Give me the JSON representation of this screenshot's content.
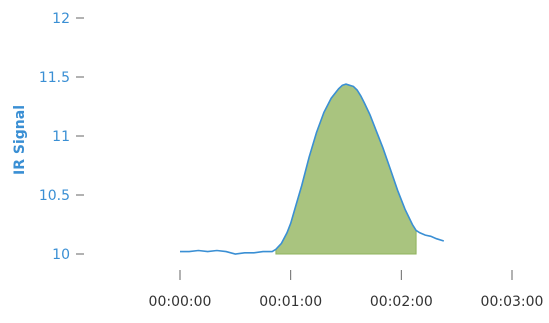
{
  "colors": {
    "line": "#3a8fd4",
    "fill": "#a9c47f",
    "fill_edge": "#8fb35c",
    "y_tick": "#3a8fd4",
    "x_tick": "#555555"
  },
  "chart_data": {
    "type": "area",
    "title": "",
    "xlabel": "",
    "ylabel": "IR Signal",
    "ylim": [
      10,
      12
    ],
    "xlim_seconds": [
      -10,
      180
    ],
    "y_ticks": [
      {
        "value": 10,
        "label": "10"
      },
      {
        "value": 10.5,
        "label": "10.5"
      },
      {
        "value": 11,
        "label": "11"
      },
      {
        "value": 11.5,
        "label": "11.5"
      },
      {
        "value": 12,
        "label": "12"
      }
    ],
    "x_ticks": [
      {
        "value": 0,
        "label": "00:00:00"
      },
      {
        "value": 60,
        "label": "00:01:00"
      },
      {
        "value": 120,
        "label": "00:02:00"
      },
      {
        "value": 180,
        "label": "00:03:00"
      }
    ],
    "grid": false,
    "shaded_region_seconds": [
      52,
      128
    ],
    "series": [
      {
        "x": [
          0,
          5,
          10,
          15,
          20,
          25,
          30,
          35,
          40,
          45,
          50,
          52,
          55,
          58,
          60,
          63,
          66,
          70,
          74,
          78,
          82,
          86,
          88,
          90,
          92,
          94,
          96,
          98,
          100,
          103,
          106,
          110,
          114,
          118,
          122,
          126,
          128,
          130,
          133,
          136,
          139,
          143
        ],
        "y": [
          10.02,
          10.02,
          10.03,
          10.02,
          10.03,
          10.02,
          10.0,
          10.01,
          10.01,
          10.02,
          10.02,
          10.04,
          10.09,
          10.18,
          10.26,
          10.42,
          10.58,
          10.82,
          11.03,
          11.2,
          11.32,
          11.4,
          11.43,
          11.44,
          11.43,
          11.42,
          11.39,
          11.34,
          11.28,
          11.18,
          11.06,
          10.9,
          10.72,
          10.54,
          10.38,
          10.25,
          10.2,
          10.18,
          10.16,
          10.15,
          10.13,
          10.11
        ]
      }
    ]
  }
}
